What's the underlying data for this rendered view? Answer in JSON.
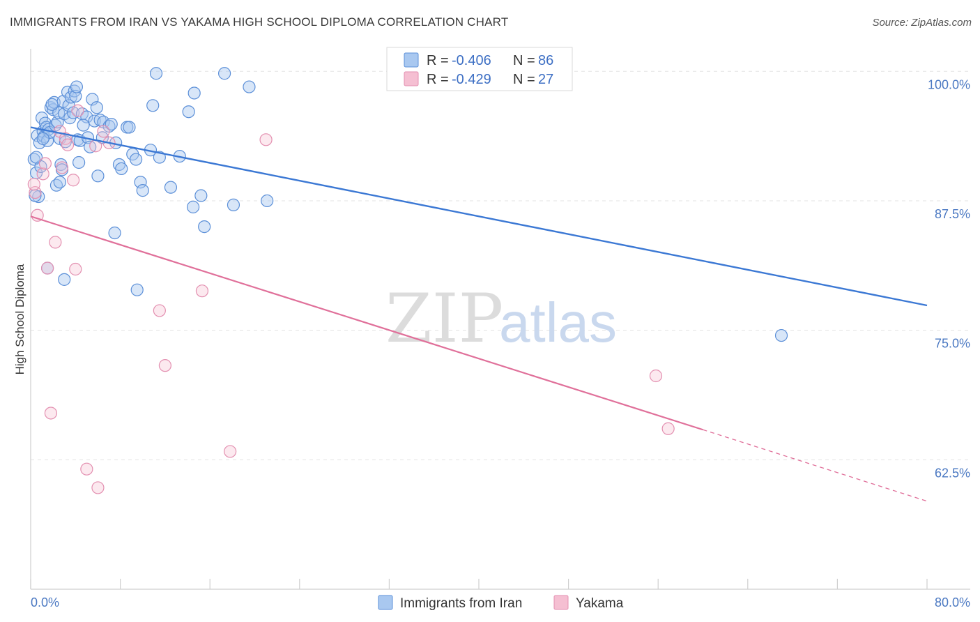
{
  "title": "IMMIGRANTS FROM IRAN VS YAKAMA HIGH SCHOOL DIPLOMA CORRELATION CHART",
  "source": "Source: ZipAtlas.com",
  "watermark": {
    "zip": "ZIP",
    "atlas": "atlas"
  },
  "colors": {
    "blue": "#3b78d4",
    "blue_fill": "#a9c8f0",
    "pink": "#e0709a",
    "pink_fill": "#f5bfd2",
    "tick_text": "#4a78c2"
  },
  "legend": {
    "rows": [
      {
        "r_label": "R =",
        "r_value": "-0.406",
        "n_label": "N =",
        "n_value": "86"
      },
      {
        "r_label": "R =",
        "r_value": "-0.429",
        "n_label": "N =",
        "n_value": "27"
      }
    ]
  },
  "bottom_legend": [
    "Immigrants from Iran",
    "Yakama"
  ],
  "chart_data": {
    "type": "scatter",
    "title": "IMMIGRANTS FROM IRAN VS YAKAMA HIGH SCHOOL DIPLOMA CORRELATION CHART",
    "xlabel": "",
    "ylabel": "High School Diploma",
    "xlim": [
      0,
      80
    ],
    "ylim": [
      50,
      101.5
    ],
    "x_tick_labels": [
      "0.0%",
      "80.0%"
    ],
    "y_ticks": [
      100,
      87.5,
      75,
      62.5
    ],
    "y_tick_labels": [
      "100.0%",
      "87.5%",
      "75.0%",
      "62.5%"
    ],
    "grid": "horizontal dashed",
    "legend_position": "top-center",
    "series": [
      {
        "name": "Immigrants from Iran",
        "color": "#3b78d4",
        "trend": {
          "x0": 0,
          "y0": 94.6,
          "x1": 80,
          "y1": 77.4
        },
        "points": [
          [
            0.3,
            91.5
          ],
          [
            0.5,
            90.2
          ],
          [
            0.6,
            93.8
          ],
          [
            0.8,
            93.1
          ],
          [
            0.9,
            90.8
          ],
          [
            1.0,
            95.5
          ],
          [
            1.1,
            94.2
          ],
          [
            1.2,
            93.7
          ],
          [
            1.3,
            95.0
          ],
          [
            1.4,
            94.6
          ],
          [
            1.5,
            93.3
          ],
          [
            1.6,
            94.4
          ],
          [
            1.7,
            94.1
          ],
          [
            1.8,
            96.5
          ],
          [
            2.0,
            96.3
          ],
          [
            2.1,
            97.0
          ],
          [
            2.2,
            94.8
          ],
          [
            2.3,
            89.0
          ],
          [
            2.4,
            95.1
          ],
          [
            2.5,
            96.0
          ],
          [
            2.6,
            93.5
          ],
          [
            2.7,
            91.0
          ],
          [
            2.8,
            90.5
          ],
          [
            2.9,
            97.1
          ],
          [
            3.0,
            95.9
          ],
          [
            3.1,
            93.2
          ],
          [
            3.3,
            98.0
          ],
          [
            3.4,
            96.7
          ],
          [
            3.5,
            95.5
          ],
          [
            3.6,
            97.5
          ],
          [
            3.8,
            96.0
          ],
          [
            3.9,
            98.1
          ],
          [
            4.0,
            97.6
          ],
          [
            4.1,
            98.5
          ],
          [
            4.2,
            93.4
          ],
          [
            4.3,
            91.2
          ],
          [
            4.4,
            93.3
          ],
          [
            4.6,
            95.9
          ],
          [
            5.0,
            95.6
          ],
          [
            5.1,
            93.6
          ],
          [
            5.3,
            92.7
          ],
          [
            5.5,
            97.3
          ],
          [
            5.7,
            95.2
          ],
          [
            5.9,
            96.5
          ],
          [
            6.0,
            89.9
          ],
          [
            6.2,
            95.3
          ],
          [
            6.5,
            95.1
          ],
          [
            7.0,
            94.7
          ],
          [
            7.2,
            94.9
          ],
          [
            7.6,
            93.1
          ],
          [
            7.9,
            91.0
          ],
          [
            8.1,
            90.6
          ],
          [
            8.6,
            94.6
          ],
          [
            9.1,
            92.0
          ],
          [
            9.4,
            91.5
          ],
          [
            9.8,
            89.3
          ],
          [
            10.0,
            88.5
          ],
          [
            10.7,
            92.4
          ],
          [
            10.9,
            96.7
          ],
          [
            11.5,
            91.7
          ],
          [
            13.3,
            91.8
          ],
          [
            14.1,
            96.1
          ],
          [
            14.6,
            97.9
          ],
          [
            18.1,
            87.1
          ],
          [
            1.5,
            81.0
          ],
          [
            3.0,
            79.9
          ],
          [
            9.5,
            78.9
          ],
          [
            7.5,
            84.4
          ],
          [
            15.5,
            85.0
          ],
          [
            21.1,
            87.5
          ],
          [
            15.2,
            88.0
          ],
          [
            11.2,
            99.8
          ],
          [
            17.3,
            99.8
          ],
          [
            19.5,
            98.5
          ],
          [
            14.5,
            86.9
          ],
          [
            12.5,
            88.8
          ],
          [
            67.0,
            74.5
          ],
          [
            2.6,
            89.3
          ],
          [
            0.5,
            91.7
          ],
          [
            1.1,
            93.5
          ],
          [
            1.9,
            96.8
          ],
          [
            4.7,
            94.8
          ],
          [
            6.4,
            93.6
          ],
          [
            8.8,
            94.6
          ],
          [
            0.7,
            87.9
          ],
          [
            0.4,
            88.0
          ]
        ]
      },
      {
        "name": "Yakama",
        "color": "#e0709a",
        "trend": {
          "x0": 0,
          "y0": 86.0,
          "x1": 60,
          "y1": 65.4,
          "x_dash_end": 80,
          "y_dash_end": 58.5
        },
        "points": [
          [
            0.4,
            88.3
          ],
          [
            0.6,
            86.1
          ],
          [
            1.1,
            90.1
          ],
          [
            1.3,
            91.1
          ],
          [
            1.5,
            81.0
          ],
          [
            1.8,
            67.0
          ],
          [
            2.2,
            83.5
          ],
          [
            2.6,
            94.2
          ],
          [
            2.8,
            90.7
          ],
          [
            3.1,
            93.5
          ],
          [
            3.8,
            89.5
          ],
          [
            4.0,
            80.9
          ],
          [
            4.2,
            96.2
          ],
          [
            5.0,
            61.6
          ],
          [
            5.8,
            92.8
          ],
          [
            6.0,
            59.8
          ],
          [
            6.5,
            94.2
          ],
          [
            7.0,
            93.1
          ],
          [
            11.5,
            76.9
          ],
          [
            12.0,
            71.6
          ],
          [
            15.3,
            78.8
          ],
          [
            17.8,
            63.3
          ],
          [
            21.0,
            93.4
          ],
          [
            55.8,
            70.6
          ],
          [
            56.9,
            65.5
          ],
          [
            3.3,
            92.9
          ],
          [
            0.3,
            89.1
          ]
        ]
      }
    ]
  }
}
